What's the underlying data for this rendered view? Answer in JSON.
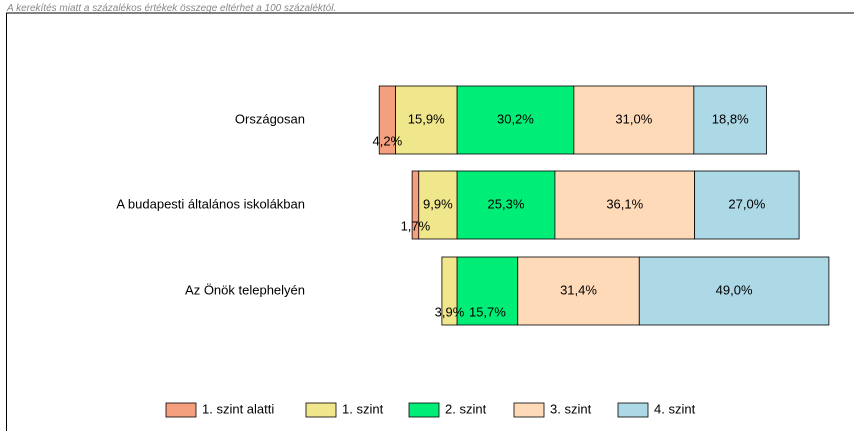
{
  "chart_data": {
    "type": "diverging-stacked-bar",
    "note": "A kerekítés miatt a  százalékos értékek összege eltérhet a 100 százaléktól.",
    "categories": [
      "Országosan",
      "A budapesti általános iskolákban",
      "Az Önök telephelyén"
    ],
    "series": [
      {
        "name": "1. szint alatti",
        "color": "#f4a07e",
        "side": "left",
        "values": [
          4.2,
          1.7,
          0
        ],
        "value_labels": [
          "4,2%",
          "1,7%",
          null
        ]
      },
      {
        "name": "1. szint",
        "color": "#f0e68c",
        "side": "left",
        "values": [
          15.9,
          9.9,
          3.9
        ],
        "value_labels": [
          "15,9%",
          "9,9%",
          "3,9%"
        ]
      },
      {
        "name": "2. szint",
        "color": "#00ee77",
        "side": "right",
        "values": [
          30.2,
          25.3,
          15.7
        ],
        "value_labels": [
          "30,2%",
          "25,3%",
          "15,7%"
        ]
      },
      {
        "name": "3. szint",
        "color": "#ffdab9",
        "side": "right",
        "values": [
          31.0,
          36.1,
          31.4
        ],
        "value_labels": [
          "31,0%",
          "36,1%",
          "31,4%"
        ]
      },
      {
        "name": "4. szint",
        "color": "#add8e6",
        "side": "right",
        "values": [
          18.8,
          27.0,
          49.0
        ],
        "value_labels": [
          "18,8%",
          "27,0%",
          "49,0%"
        ]
      }
    ]
  }
}
